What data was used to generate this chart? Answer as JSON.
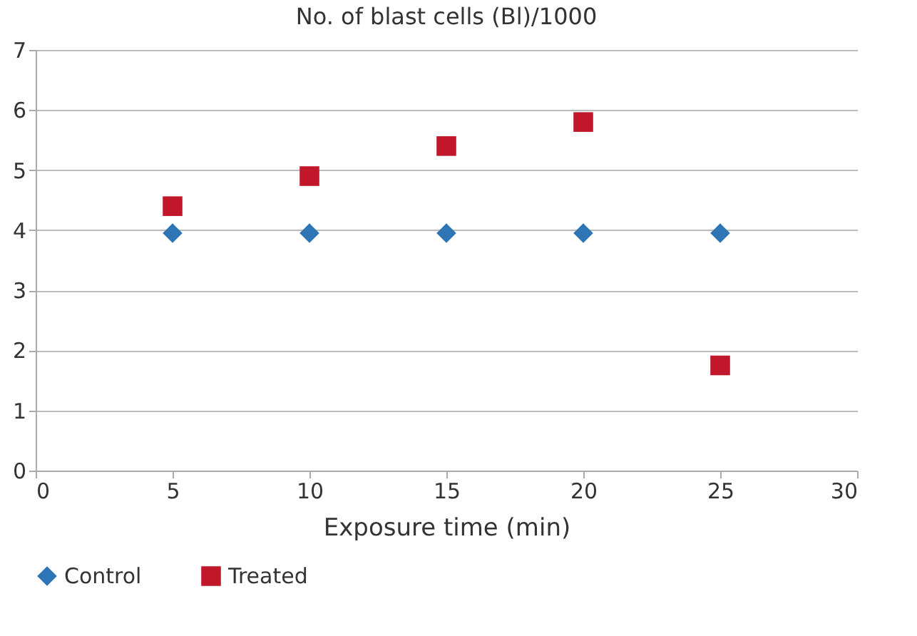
{
  "chart_data": {
    "type": "scatter",
    "title": "No. of blast cells (Bl)/1000",
    "xlabel": "Exposure time (min)",
    "x": [
      5,
      10,
      15,
      20,
      25
    ],
    "series": [
      {
        "name": "Control",
        "color": "#2e75b6",
        "marker": "diamond",
        "values": [
          3.95,
          3.95,
          3.95,
          3.95,
          3.95
        ]
      },
      {
        "name": "Treated",
        "color": "#c0182a",
        "marker": "square",
        "values": [
          4.4,
          4.9,
          5.4,
          5.8,
          1.75
        ]
      }
    ],
    "xlim": [
      0,
      30
    ],
    "xticks": [
      0,
      5,
      10,
      15,
      20,
      25,
      30
    ],
    "ylim": [
      0,
      7
    ],
    "yticks": [
      0,
      1,
      2,
      3,
      4,
      5,
      6,
      7
    ],
    "grid": "y",
    "legend": "bottom"
  }
}
